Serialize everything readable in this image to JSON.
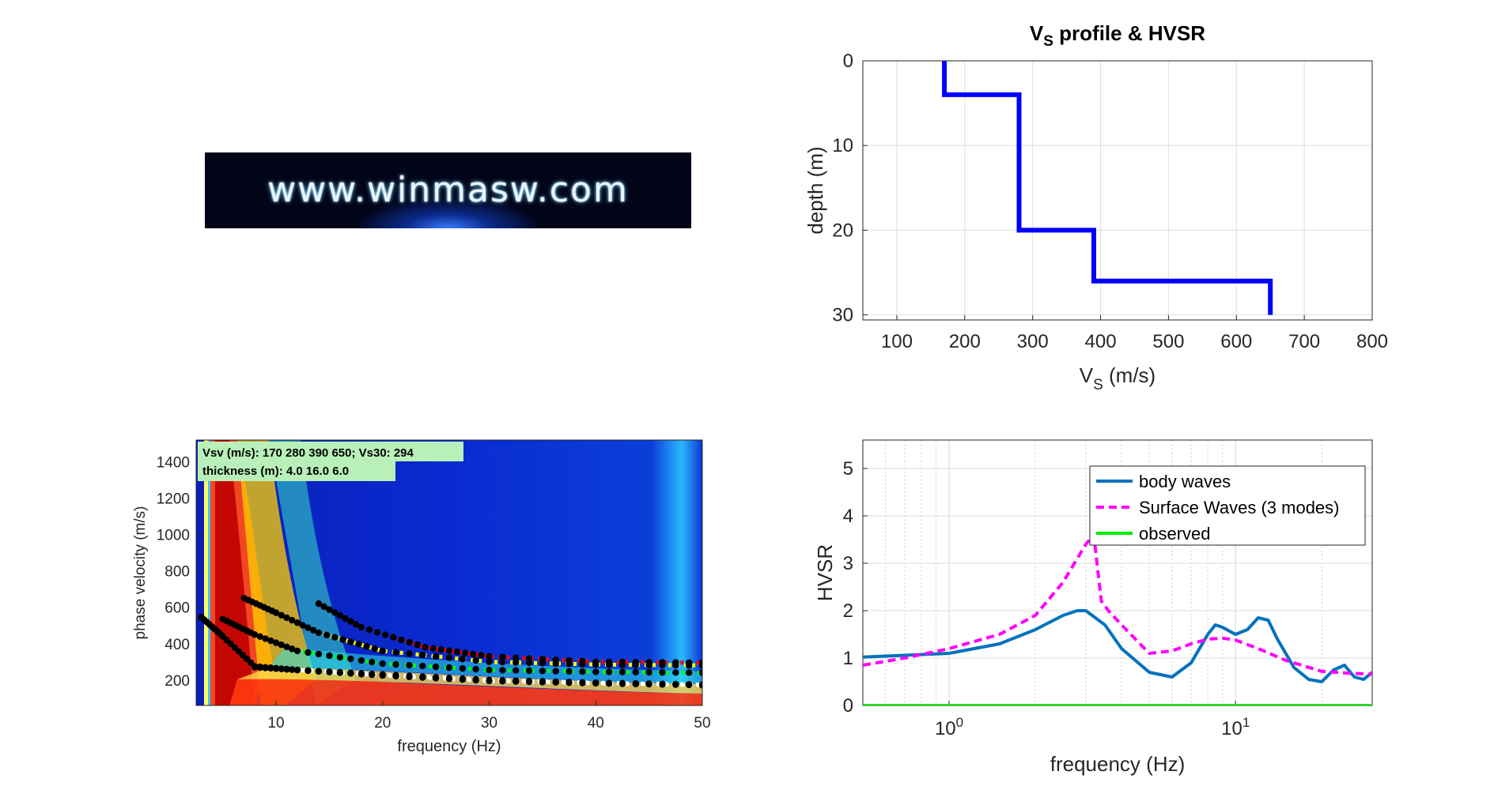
{
  "logo": {
    "text": "www.winmasw.com"
  },
  "chart_data": [
    {
      "type": "line",
      "title": "V",
      "title_sub": "S",
      "title_rest": " profile & HVSR",
      "xlabel_main": "V",
      "xlabel_sub": "S",
      "xlabel_rest": " (m/s)",
      "ylabel": "depth (m)",
      "xlim": [
        50,
        800
      ],
      "ylim": [
        30.6,
        0
      ],
      "xticks": [
        100,
        200,
        300,
        400,
        500,
        600,
        700,
        800
      ],
      "yticks": [
        0,
        10,
        20,
        30
      ],
      "grid": true,
      "series": [
        {
          "color": "#0000ff",
          "x": [
            170,
            170,
            280,
            280,
            390,
            390,
            650,
            650
          ],
          "y": [
            0,
            4,
            4,
            20,
            20,
            26,
            26,
            30
          ]
        }
      ]
    },
    {
      "type": "heatmap",
      "xlabel": "frequency (Hz)",
      "ylabel": "phase velocity (m/s)",
      "xlim": [
        2.5,
        50
      ],
      "ylim": [
        60,
        1520
      ],
      "xticks": [
        10,
        20,
        30,
        40,
        50
      ],
      "yticks": [
        200,
        400,
        600,
        800,
        1000,
        1200,
        1400
      ],
      "annotations": [
        "Vsv (m/s): 170  280  390  650; Vs30: 294",
        "thickness (m): 4.0    16.0    6.0"
      ],
      "picked_curves": [
        {
          "color": "#ffffff",
          "x": [
            3,
            5,
            8,
            12,
            20,
            30,
            40,
            50
          ],
          "y": [
            545,
            440,
            275,
            255,
            230,
            200,
            185,
            175
          ]
        },
        {
          "color": "#ffffff",
          "x": [
            8,
            12,
            20,
            30,
            40,
            50
          ],
          "y": [
            270,
            255,
            225,
            195,
            182,
            172
          ]
        },
        {
          "color": "#00ff00",
          "x": [
            5,
            8,
            12,
            20,
            30,
            40,
            50
          ],
          "y": [
            535,
            450,
            360,
            290,
            255,
            245,
            240
          ]
        },
        {
          "color": "#ffff00",
          "x": [
            7,
            10,
            14,
            20,
            30,
            40,
            50
          ],
          "y": [
            650,
            570,
            460,
            360,
            300,
            285,
            280
          ]
        },
        {
          "color": "#ff0000",
          "x": [
            14,
            18,
            24,
            30,
            40,
            50
          ],
          "y": [
            620,
            490,
            380,
            330,
            300,
            295
          ]
        }
      ]
    },
    {
      "type": "line",
      "xlabel": "frequency (Hz)",
      "ylabel": "HVSR",
      "xscale": "log",
      "xlim": [
        0.5,
        30
      ],
      "ylim": [
        0,
        5.6
      ],
      "xticks": [
        1,
        10
      ],
      "xtick_base": "10",
      "xtick_exponents": [
        "0",
        "1"
      ],
      "yticks": [
        0,
        1,
        2,
        3,
        4,
        5
      ],
      "grid": true,
      "legend_position": "top-right",
      "series": [
        {
          "name": "body waves",
          "color": "#0072bd",
          "dash": "none",
          "x": [
            0.5,
            1,
            1.5,
            2,
            2.5,
            2.8,
            3,
            3.5,
            4,
            5,
            6,
            7,
            8,
            8.5,
            9,
            10,
            11,
            12,
            13,
            14,
            16,
            18,
            20,
            22,
            24,
            26,
            28,
            30
          ],
          "y": [
            1.02,
            1.1,
            1.3,
            1.6,
            1.9,
            2.0,
            2.0,
            1.7,
            1.2,
            0.7,
            0.6,
            0.9,
            1.5,
            1.7,
            1.65,
            1.5,
            1.6,
            1.85,
            1.8,
            1.4,
            0.8,
            0.55,
            0.5,
            0.75,
            0.85,
            0.6,
            0.55,
            0.7
          ]
        },
        {
          "name": "Surface Waves (3 modes)",
          "color": "#ff00ff",
          "dash": "10,6",
          "x": [
            0.5,
            0.7,
            1,
            1.5,
            2,
            2.5,
            3,
            3.2,
            3.4,
            3.6,
            4,
            5,
            6,
            7,
            8,
            9,
            10,
            12,
            15,
            20,
            25,
            30
          ],
          "y": [
            0.85,
            1.0,
            1.2,
            1.5,
            1.9,
            2.6,
            3.4,
            3.6,
            2.2,
            2.0,
            1.7,
            1.1,
            1.15,
            1.3,
            1.4,
            1.42,
            1.38,
            1.2,
            0.95,
            0.72,
            0.68,
            0.66
          ]
        },
        {
          "name": "observed",
          "color": "#00ee00",
          "dash": "none",
          "x": [
            0.5,
            30
          ],
          "y": [
            0.0,
            0.0
          ]
        }
      ]
    }
  ]
}
